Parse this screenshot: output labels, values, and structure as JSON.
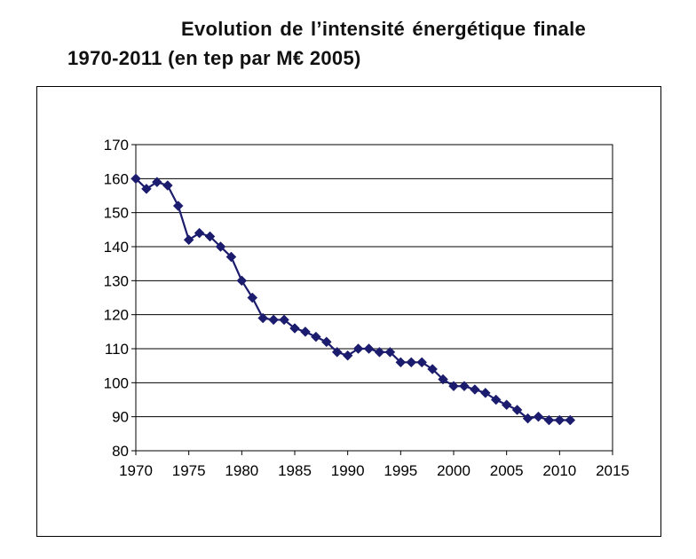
{
  "title": {
    "line1": "Evolution de l’intensité énergétique finale",
    "line2": "1970-2011 (en tep par M€ 2005)"
  },
  "chart_data": {
    "type": "line",
    "title": "Evolution de l’intensité énergétique finale 1970-2011 (en tep par M€ 2005)",
    "xlabel": "",
    "ylabel": "",
    "xlim": [
      1970,
      2015
    ],
    "ylim": [
      80,
      170
    ],
    "x_ticks": [
      1970,
      1975,
      1980,
      1985,
      1990,
      1995,
      2000,
      2005,
      2010,
      2015
    ],
    "y_ticks": [
      80,
      90,
      100,
      110,
      120,
      130,
      140,
      150,
      160,
      170
    ],
    "grid": "horizontal",
    "legend": "none",
    "line_color": "#1c1c6e",
    "marker": "diamond",
    "series": [
      {
        "x": [
          1970,
          1971,
          1972,
          1973,
          1974,
          1975,
          1976,
          1977,
          1978,
          1979,
          1980,
          1981,
          1982,
          1983,
          1984,
          1985,
          1986,
          1987,
          1988,
          1989,
          1990,
          1991,
          1992,
          1993,
          1994,
          1995,
          1996,
          1997,
          1998,
          1999,
          2000,
          2001,
          2002,
          2003,
          2004,
          2005,
          2006,
          2007,
          2008,
          2009,
          2010,
          2011
        ],
        "values": [
          160,
          157,
          159,
          158,
          152,
          142,
          144,
          143,
          140,
          137,
          130,
          125,
          119,
          118.5,
          118.5,
          116,
          115,
          113.5,
          112,
          109,
          108,
          110,
          110,
          109,
          109,
          106,
          106,
          106,
          104,
          101,
          99,
          99,
          98,
          97,
          95,
          93.5,
          92,
          89.5,
          90,
          89,
          89,
          89
        ]
      }
    ]
  }
}
